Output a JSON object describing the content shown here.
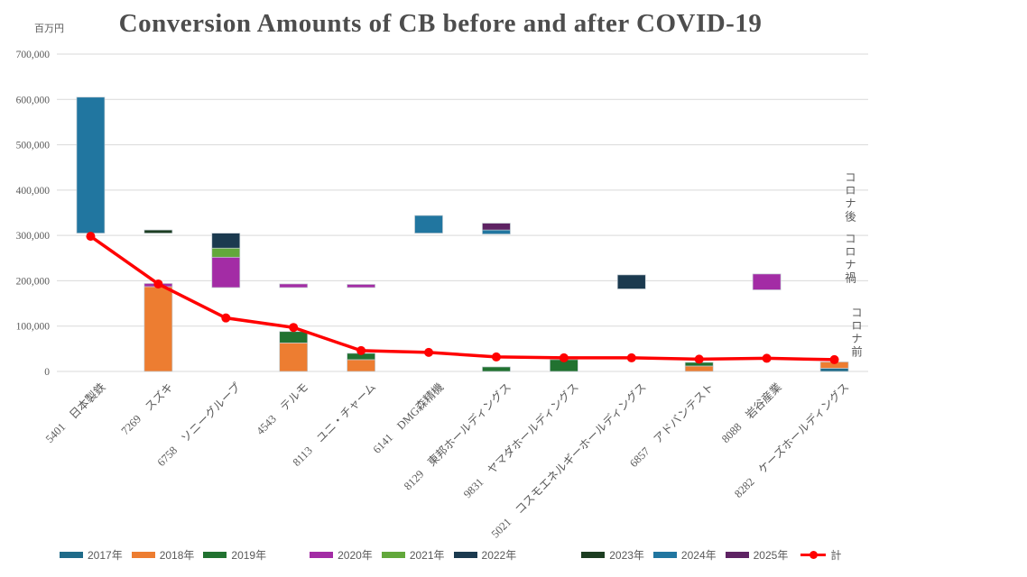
{
  "title": "Conversion Amounts of CB before and after COVID-19",
  "unit_label": "百万円",
  "annotations": {
    "covid_after": "コロナ後",
    "covid_during": "コロナ禍",
    "covid_before": "コロナ前"
  },
  "colors": {
    "2017": "#1F6B89",
    "2018": "#ED7D31",
    "2019": "#217230",
    "2020": "#A32CA5",
    "2021": "#62A83B",
    "2022": "#1B3A4F",
    "2023": "#1C3D21",
    "2024": "#2176A0",
    "2025": "#5E2363",
    "total_line": "#FF0000",
    "grid": "#D9D9D9",
    "axis_text": "#595959"
  },
  "legend": {
    "years": [
      "2017年",
      "2018年",
      "2019年",
      "2020年",
      "2021年",
      "2022年",
      "2023年",
      "2024年",
      "2025年"
    ],
    "total_label": "計"
  },
  "chart_data": {
    "type": "bar",
    "stacked": true,
    "title": "Conversion Amounts of CB before and after COVID-19",
    "ylabel": "百万円",
    "ylim": [
      0,
      700000
    ],
    "yticks": [
      0,
      100000,
      200000,
      300000,
      400000,
      500000,
      600000,
      700000
    ],
    "grid": true,
    "legend_position": "bottom",
    "x_label_rotation": -45,
    "categories": [
      "5401　日本製鉄",
      "7269　スズキ",
      "6758　ソニーグループ",
      "4543　テルモ",
      "8113　ユニ・チャーム",
      "6141　DMG森精機",
      "8129　東邦ホールディングス",
      "9831　ヤマダホールディングス",
      "5021　コスモエネルギーホールディングス",
      "6857　アドバンテスト",
      "8088　岩谷産業",
      "8282　ケーズホールディングス"
    ],
    "codes": [
      "5401",
      "7269",
      "6758",
      "4543",
      "8113",
      "6141",
      "8129",
      "9831",
      "5021",
      "6857",
      "8088",
      "8282"
    ],
    "bars": [
      {
        "code": "5401",
        "segments": [
          {
            "year": "2024",
            "from": 305000,
            "to": 605000
          }
        ]
      },
      {
        "code": "7269",
        "segments": [
          {
            "year": "2018",
            "from": 0,
            "to": 187000
          },
          {
            "year": "2020",
            "from": 187000,
            "to": 194000
          },
          {
            "year": "2023",
            "from": 305000,
            "to": 312000
          }
        ]
      },
      {
        "code": "6758",
        "segments": [
          {
            "year": "2020",
            "from": 185000,
            "to": 252000
          },
          {
            "year": "2021",
            "from": 252000,
            "to": 272000
          },
          {
            "year": "2022",
            "from": 272000,
            "to": 305000
          }
        ]
      },
      {
        "code": "4543",
        "segments": [
          {
            "year": "2018",
            "from": 0,
            "to": 63000
          },
          {
            "year": "2019",
            "from": 63000,
            "to": 88000
          },
          {
            "year": "2020",
            "from": 185000,
            "to": 193000
          }
        ]
      },
      {
        "code": "8113",
        "segments": [
          {
            "year": "2018",
            "from": 0,
            "to": 26000
          },
          {
            "year": "2019",
            "from": 26000,
            "to": 40000
          },
          {
            "year": "2020",
            "from": 185000,
            "to": 192000
          }
        ]
      },
      {
        "code": "6141",
        "segments": [
          {
            "year": "2024",
            "from": 305000,
            "to": 344000
          }
        ]
      },
      {
        "code": "8129",
        "segments": [
          {
            "year": "2019",
            "from": 0,
            "to": 10000
          },
          {
            "year": "2024",
            "from": 303000,
            "to": 312000
          },
          {
            "year": "2025",
            "from": 312000,
            "to": 327000
          }
        ]
      },
      {
        "code": "9831",
        "segments": [
          {
            "year": "2019",
            "from": 0,
            "to": 26000
          }
        ]
      },
      {
        "code": "5021",
        "segments": [
          {
            "year": "2022",
            "from": 182000,
            "to": 213000
          }
        ]
      },
      {
        "code": "6857",
        "segments": [
          {
            "year": "2018",
            "from": 0,
            "to": 12000
          },
          {
            "year": "2019",
            "from": 12000,
            "to": 20000
          }
        ]
      },
      {
        "code": "8088",
        "segments": [
          {
            "year": "2020",
            "from": 180000,
            "to": 215000
          }
        ]
      },
      {
        "code": "8282",
        "segments": [
          {
            "year": "2017",
            "from": 0,
            "to": 7000
          },
          {
            "year": "2018",
            "from": 7000,
            "to": 21000
          }
        ]
      }
    ],
    "line": {
      "name": "計",
      "values": [
        298000,
        193000,
        118000,
        97000,
        46000,
        42000,
        32000,
        30000,
        30000,
        27000,
        29000,
        26000
      ]
    }
  }
}
